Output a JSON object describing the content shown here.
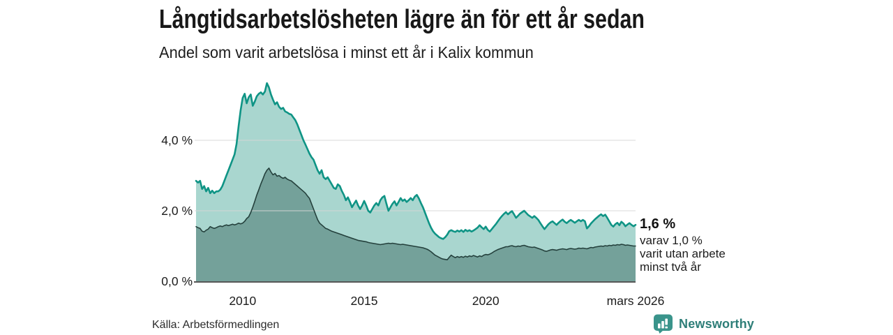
{
  "header": {
    "title": "Långtidsarbetslösheten lägre än för ett år sedan",
    "subtitle": "Andel som varit arbetslösa i minst ett år i Kalix kommun"
  },
  "chart_data": {
    "type": "area",
    "title": "Långtidsarbetslösheten lägre än för ett år sedan",
    "subtitle": "Andel som varit arbetslösa i minst ett år i Kalix kommun",
    "unit": "%",
    "frequency": "monthly",
    "x_start": "2008-02",
    "x_end": "2026-03",
    "x_domain_years": [
      2008.083,
      2026.167
    ],
    "ylim": [
      0,
      5.9
    ],
    "grid": "horizontal",
    "legend": "none",
    "style": "overlaid-areas-from-zero",
    "yticks": [
      {
        "value": 0,
        "label": "0,0 %"
      },
      {
        "value": 2,
        "label": "2,0 %"
      },
      {
        "value": 4,
        "label": "4,0 %"
      }
    ],
    "xticks": [
      {
        "year": 2010,
        "label": "2010"
      },
      {
        "year": 2015,
        "label": "2015"
      },
      {
        "year": 2020,
        "label": "2020"
      },
      {
        "year": 2026.167,
        "label": "mars 2026"
      }
    ],
    "series": [
      {
        "name": "Arbetslösa minst ett år",
        "end_value_label": "1,6 %",
        "line_color": "#0f9485",
        "fill_color": "#a9d6cf",
        "line_width": 2.6,
        "values": [
          2.85,
          2.8,
          2.85,
          2.62,
          2.7,
          2.55,
          2.65,
          2.5,
          2.57,
          2.5,
          2.55,
          2.55,
          2.6,
          2.7,
          2.85,
          3.0,
          3.15,
          3.3,
          3.45,
          3.6,
          3.9,
          4.4,
          4.85,
          5.2,
          5.32,
          5.05,
          5.22,
          5.3,
          4.98,
          5.1,
          5.25,
          5.32,
          5.36,
          5.3,
          5.38,
          5.62,
          5.5,
          5.3,
          5.15,
          5.02,
          5.08,
          4.95,
          4.89,
          4.92,
          4.82,
          4.79,
          4.75,
          4.73,
          4.65,
          4.57,
          4.45,
          4.3,
          4.15,
          4.0,
          3.88,
          3.75,
          3.62,
          3.52,
          3.45,
          3.3,
          3.15,
          3.05,
          3.15,
          2.95,
          2.9,
          2.95,
          2.85,
          2.75,
          2.65,
          2.62,
          2.75,
          2.7,
          2.56,
          2.45,
          2.3,
          2.38,
          2.25,
          2.1,
          2.2,
          2.29,
          2.15,
          2.05,
          2.15,
          2.28,
          2.15,
          2.0,
          1.95,
          2.05,
          2.15,
          2.22,
          2.15,
          2.3,
          2.38,
          2.42,
          2.2,
          2.0,
          2.1,
          2.2,
          2.27,
          2.15,
          2.25,
          2.36,
          2.28,
          2.32,
          2.25,
          2.3,
          2.36,
          2.3,
          2.4,
          2.45,
          2.35,
          2.22,
          2.1,
          1.95,
          1.8,
          1.65,
          1.52,
          1.42,
          1.35,
          1.3,
          1.25,
          1.22,
          1.2,
          1.25,
          1.32,
          1.42,
          1.45,
          1.42,
          1.4,
          1.44,
          1.41,
          1.45,
          1.4,
          1.46,
          1.42,
          1.45,
          1.41,
          1.44,
          1.48,
          1.52,
          1.59,
          1.53,
          1.48,
          1.55,
          1.46,
          1.41,
          1.48,
          1.55,
          1.62,
          1.7,
          1.78,
          1.85,
          1.91,
          1.96,
          1.9,
          1.95,
          1.99,
          1.9,
          1.8,
          1.86,
          1.92,
          1.96,
          2.0,
          1.94,
          1.88,
          1.84,
          1.8,
          1.85,
          1.8,
          1.74,
          1.65,
          1.56,
          1.48,
          1.55,
          1.62,
          1.67,
          1.7,
          1.65,
          1.6,
          1.66,
          1.71,
          1.75,
          1.69,
          1.65,
          1.7,
          1.74,
          1.7,
          1.66,
          1.7,
          1.74,
          1.7,
          1.74,
          1.7,
          1.5,
          1.56,
          1.64,
          1.7,
          1.76,
          1.81,
          1.86,
          1.9,
          1.85,
          1.89,
          1.8,
          1.7,
          1.6,
          1.55,
          1.62,
          1.66,
          1.59,
          1.69,
          1.64,
          1.56,
          1.61,
          1.65,
          1.6,
          1.56,
          1.6
        ]
      },
      {
        "name": "Varav arbetslösa minst två år",
        "end_value_label": "1,0 %",
        "line_color": "#24403c",
        "fill_color": "#74a19a",
        "line_width": 1.6,
        "values": [
          1.55,
          1.52,
          1.5,
          1.42,
          1.4,
          1.45,
          1.48,
          1.55,
          1.52,
          1.5,
          1.52,
          1.55,
          1.57,
          1.55,
          1.58,
          1.6,
          1.58,
          1.6,
          1.62,
          1.6,
          1.62,
          1.65,
          1.63,
          1.65,
          1.7,
          1.78,
          1.83,
          1.95,
          2.1,
          2.27,
          2.45,
          2.6,
          2.76,
          2.9,
          3.05,
          3.15,
          3.21,
          3.1,
          3.02,
          3.06,
          2.98,
          3.0,
          2.95,
          2.92,
          2.95,
          2.9,
          2.87,
          2.85,
          2.8,
          2.75,
          2.7,
          2.65,
          2.6,
          2.55,
          2.5,
          2.42,
          2.35,
          2.2,
          2.05,
          1.9,
          1.75,
          1.65,
          1.6,
          1.55,
          1.5,
          1.48,
          1.45,
          1.42,
          1.4,
          1.38,
          1.36,
          1.34,
          1.32,
          1.3,
          1.28,
          1.26,
          1.24,
          1.22,
          1.2,
          1.18,
          1.16,
          1.15,
          1.14,
          1.13,
          1.12,
          1.1,
          1.09,
          1.08,
          1.07,
          1.06,
          1.05,
          1.04,
          1.05,
          1.06,
          1.07,
          1.08,
          1.07,
          1.08,
          1.07,
          1.06,
          1.05,
          1.04,
          1.05,
          1.04,
          1.03,
          1.02,
          1.01,
          1.0,
          0.99,
          0.98,
          0.97,
          0.96,
          0.95,
          0.93,
          0.91,
          0.88,
          0.84,
          0.79,
          0.74,
          0.71,
          0.68,
          0.65,
          0.63,
          0.62,
          0.61,
          0.68,
          0.74,
          0.7,
          0.67,
          0.7,
          0.68,
          0.7,
          0.68,
          0.71,
          0.69,
          0.72,
          0.7,
          0.73,
          0.71,
          0.69,
          0.72,
          0.7,
          0.74,
          0.76,
          0.75,
          0.77,
          0.8,
          0.84,
          0.87,
          0.9,
          0.92,
          0.94,
          0.96,
          0.98,
          0.98,
          1.0,
          1.01,
          0.99,
          0.98,
          1.0,
          0.99,
          1.01,
          1.02,
          1.0,
          0.98,
          0.97,
          0.96,
          0.97,
          0.95,
          0.93,
          0.91,
          0.89,
          0.86,
          0.85,
          0.87,
          0.89,
          0.9,
          0.89,
          0.88,
          0.9,
          0.91,
          0.92,
          0.91,
          0.9,
          0.92,
          0.93,
          0.92,
          0.91,
          0.92,
          0.94,
          0.93,
          0.94,
          0.93,
          0.92,
          0.94,
          0.96,
          0.95,
          0.97,
          0.98,
          0.99,
          1.0,
          0.99,
          1.01,
          1.0,
          1.02,
          1.01,
          1.03,
          1.02,
          1.04,
          1.03,
          1.05,
          1.04,
          1.02,
          1.03,
          1.02,
          1.01,
          1.0,
          1.0
        ]
      }
    ],
    "colors": {
      "gridline": "#d6d6d6",
      "baseline": "#3f3f3f",
      "tick_text": "#1c1c1c"
    }
  },
  "annotation": {
    "headline": "1,6 %",
    "lines": [
      "varav 1,0 %",
      "varit utan arbete",
      "minst två år"
    ]
  },
  "footer": {
    "source": "Källa: Arbetsförmedlingen",
    "brand": "Newsworthy",
    "brand_color": "#2e7e78",
    "brand_icon_color": "#3a948b"
  }
}
